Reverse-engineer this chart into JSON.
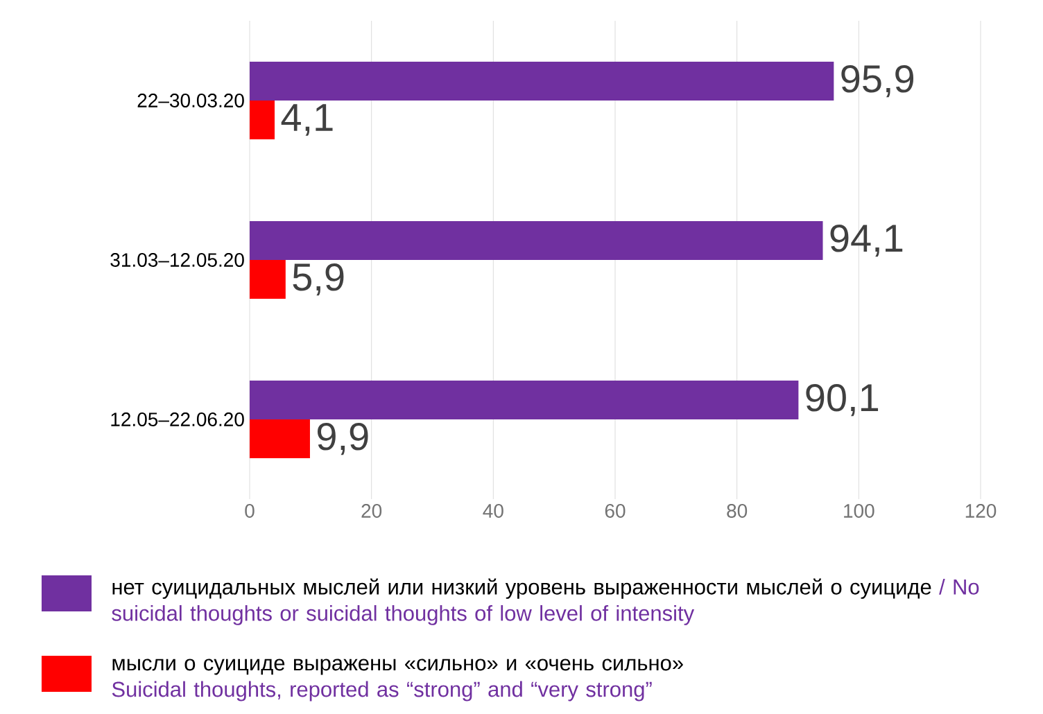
{
  "chart_data": {
    "type": "bar",
    "orientation": "horizontal",
    "categories": [
      "22–30.03.20",
      "31.03–12.05.20",
      "12.05–22.06.20"
    ],
    "series": [
      {
        "name": "нет суицидальных мыслей или низкий уровень выраженности мыслей о суициде",
        "color": "#7030a0",
        "values": [
          95.9,
          94.1,
          90.1
        ],
        "value_labels": [
          "95,9",
          "94,1",
          "90,1"
        ]
      },
      {
        "name": "мысли о суициде выражены «сильно» и «очень сильно»",
        "color": "#ff0000",
        "values": [
          4.1,
          5.9,
          9.9
        ],
        "value_labels": [
          "4,1",
          "5,9",
          "9,9"
        ]
      }
    ],
    "annotations": [
      "/ No suicidal thoughts or suicidal thoughts of low level of intensity",
      "Suicidal thoughts, reported as “strong” and “very strong”"
    ],
    "xlim": [
      0,
      120
    ],
    "xticks": [
      0,
      20,
      40,
      60,
      80,
      100,
      120
    ],
    "grid": "x",
    "legend": "bottom"
  }
}
